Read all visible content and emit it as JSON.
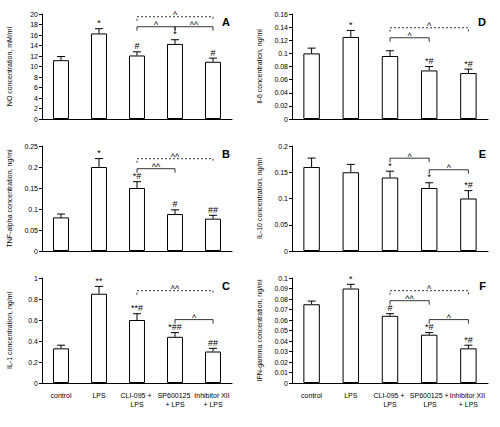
{
  "chart_data": [
    {
      "type": "bar",
      "label": "A",
      "y_label": "NO concentration, mM/ml",
      "categories": [
        "control",
        "LPS",
        "CLI-095 + LPS",
        "SP600125 + LPS",
        "Inhibitor XII + LPS"
      ],
      "values": [
        11.2,
        16.3,
        12.1,
        14.3,
        10.9
      ],
      "errors": [
        0.7,
        0.9,
        0.7,
        0.8,
        0.7
      ],
      "annotations": [
        null,
        "*",
        "#",
        "*",
        "#"
      ],
      "brackets": [
        {
          "from": "CLI-095 + LPS",
          "to": "SP600125 + LPS",
          "label": "^"
        },
        {
          "from": "SP600125 + LPS",
          "to": "Inhibitor XII + LPS",
          "label": "^^"
        },
        {
          "from": "CLI-095 + LPS",
          "to": "Inhibitor XII + LPS",
          "label": "^"
        }
      ],
      "color": "#ffffff",
      "ylim": [
        0,
        20
      ],
      "yticks": [
        0,
        2,
        4,
        6,
        8,
        10,
        12,
        14,
        16,
        18,
        20
      ],
      "grid": false,
      "tick_labels": "y"
    },
    {
      "type": "bar",
      "label": "B",
      "y_label": "TNF-alpha concentration, ng/ml",
      "categories": [
        "control",
        "LPS",
        "CLI-095 + LPS",
        "SP600125 + LPS",
        "Inhibitor XII + LPS"
      ],
      "values": [
        0.08,
        0.2,
        0.15,
        0.088,
        0.077
      ],
      "errors": [
        0.008,
        0.02,
        0.015,
        0.01,
        0.008
      ],
      "annotations": [
        null,
        "*",
        "*#",
        "#",
        "##"
      ],
      "brackets": [
        {
          "from": "CLI-095 + LPS",
          "to": "SP600125 + LPS",
          "label": "^^"
        },
        {
          "from": "CLI-095 + LPS",
          "to": "Inhibitor XII + LPS",
          "label": "^^"
        }
      ],
      "color": "#ffffff",
      "ylim": [
        0,
        0.25
      ],
      "yticks": [
        0,
        0.05,
        0.1,
        0.15,
        0.2,
        0.25
      ],
      "grid": false,
      "tick_labels": "y"
    },
    {
      "type": "bar",
      "label": "C",
      "y_label": "IL-1 concentration, ng/ml",
      "categories": [
        "control",
        "LPS",
        "CLI-095 + LPS",
        "SP600125 + LPS",
        "Inhibitor XII + LPS"
      ],
      "values": [
        0.33,
        0.85,
        0.6,
        0.44,
        0.3
      ],
      "errors": [
        0.03,
        0.07,
        0.06,
        0.04,
        0.03
      ],
      "annotations": [
        null,
        "**",
        "**#",
        "*##",
        "##"
      ],
      "brackets": [
        {
          "from": "SP600125 + LPS",
          "to": "Inhibitor XII + LPS",
          "label": "^"
        },
        {
          "from": "CLI-095 + LPS",
          "to": "Inhibitor XII + LPS",
          "label": "^^"
        }
      ],
      "color": "#ffffff",
      "ylim": [
        0,
        1
      ],
      "yticks": [
        0,
        0.2,
        0.4,
        0.6,
        0.8,
        1
      ],
      "grid": false,
      "tick_labels": true
    },
    {
      "type": "bar",
      "label": "D",
      "y_label": "Il-6 concentration, ng/ml",
      "categories": [
        "control",
        "LPS",
        "CLI-095 + LPS",
        "SP600125 + LPS",
        "Inhibitor XII + LPS"
      ],
      "values": [
        0.1,
        0.125,
        0.096,
        0.074,
        0.07
      ],
      "errors": [
        0.008,
        0.01,
        0.008,
        0.006,
        0.006
      ],
      "annotations": [
        null,
        "*",
        null,
        "*#",
        "*#"
      ],
      "brackets": [
        {
          "from": "CLI-095 + LPS",
          "to": "SP600125 + LPS",
          "label": "^"
        },
        {
          "from": "CLI-095 + LPS",
          "to": "Inhibitor XII + LPS",
          "label": "^"
        }
      ],
      "color": "#ffffff",
      "ylim": [
        0,
        0.16
      ],
      "yticks": [
        0,
        0.02,
        0.04,
        0.06,
        0.08,
        0.1,
        0.12,
        0.14,
        0.16
      ],
      "grid": false,
      "tick_labels": "y"
    },
    {
      "type": "bar",
      "label": "E",
      "y_label": "IL-10 concentration, ng/ml",
      "categories": [
        "control",
        "LPS",
        "CLI-095 + LPS",
        "SP600125 + LPS",
        "Inhibitor XII + LPS"
      ],
      "values": [
        0.16,
        0.15,
        0.14,
        0.12,
        0.1
      ],
      "errors": [
        0.017,
        0.015,
        0.012,
        0.01,
        0.015
      ],
      "annotations": [
        null,
        null,
        "*",
        "*",
        "*#"
      ],
      "brackets": [
        {
          "from": "CLI-095 + LPS",
          "to": "SP600125 + LPS",
          "label": "^"
        },
        {
          "from": "SP600125 + LPS",
          "to": "Inhibitor XII + LPS",
          "label": "^"
        }
      ],
      "color": "#ffffff",
      "ylim": [
        0,
        0.2
      ],
      "yticks": [
        0,
        0.05,
        0.1,
        0.15,
        0.2
      ],
      "grid": false,
      "tick_labels": "y"
    },
    {
      "type": "bar",
      "label": "F",
      "y_label": "IFN-gamma concentration, ng/ml",
      "categories": [
        "control",
        "LPS",
        "CLI-095 + LPS",
        "SP600125 + LPS",
        "Inhibitor XII + LPS"
      ],
      "values": [
        0.075,
        0.09,
        0.064,
        0.046,
        0.033
      ],
      "errors": [
        0.003,
        0.004,
        0.002,
        0.002,
        0.003
      ],
      "annotations": [
        null,
        "*",
        "#",
        "*#",
        "*#"
      ],
      "brackets": [
        {
          "from": "CLI-095 + LPS",
          "to": "SP600125 + LPS",
          "label": "^^"
        },
        {
          "from": "SP600125 + LPS",
          "to": "Inhibitor XII + LPS",
          "label": "^"
        },
        {
          "from": "CLI-095 + LPS",
          "to": "Inhibitor XII + LPS",
          "label": "^"
        }
      ],
      "color": "#ffffff",
      "ylim": [
        0,
        0.1
      ],
      "yticks": [
        0,
        0.01,
        0.02,
        0.03,
        0.04,
        0.05,
        0.06,
        0.07,
        0.08,
        0.09,
        0.1
      ],
      "grid": false,
      "tick_labels": true
    }
  ]
}
